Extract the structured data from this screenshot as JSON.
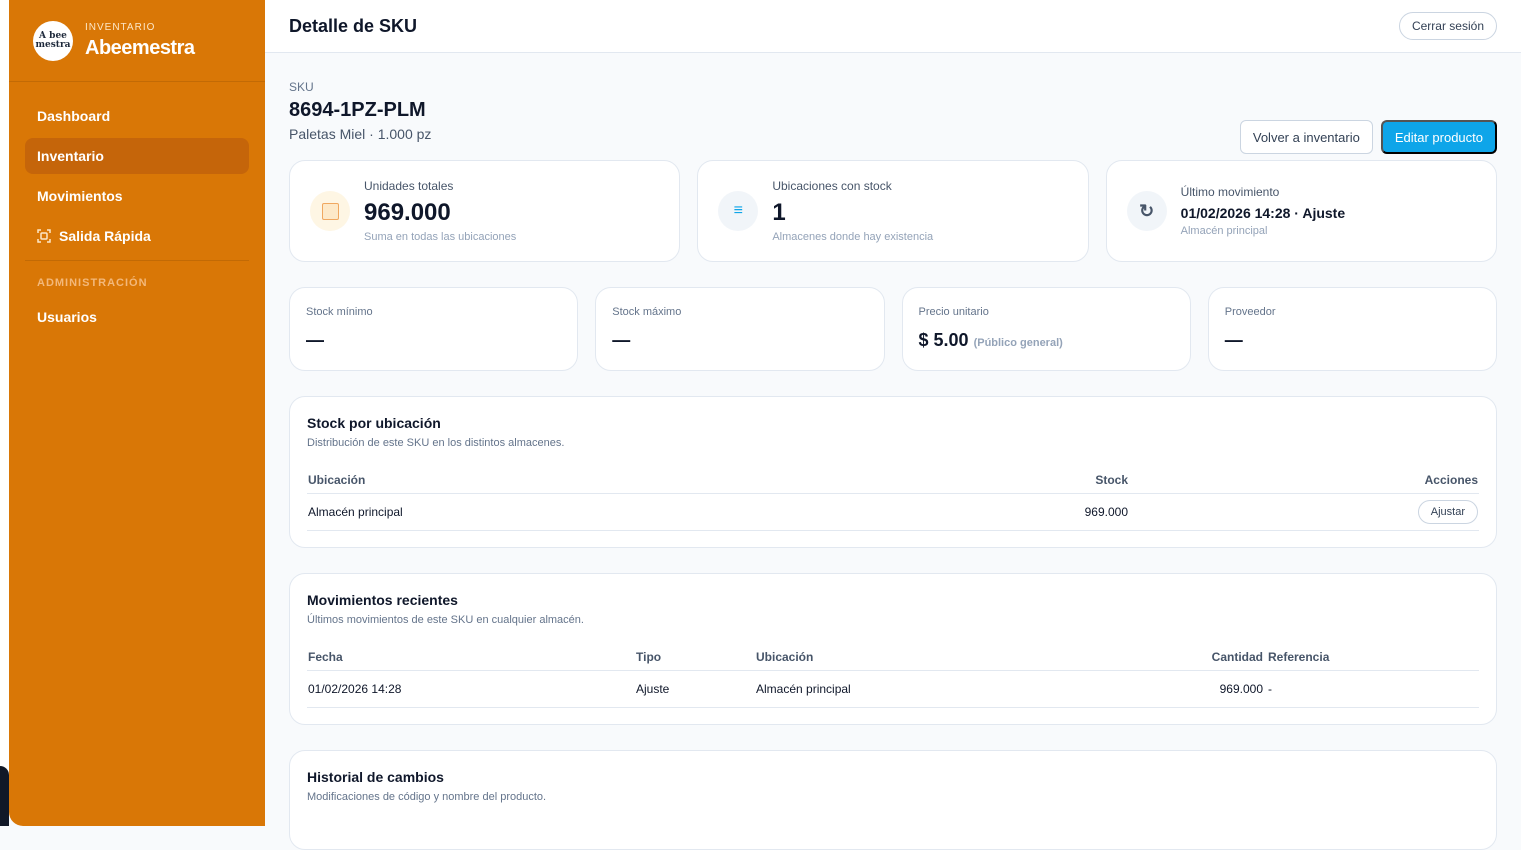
{
  "brand": {
    "subtitle": "INVENTARIO",
    "name": "Abeemestra",
    "logo_text": "A bee mestra"
  },
  "sidebar": {
    "items": [
      {
        "label": "Dashboard"
      },
      {
        "label": "Inventario",
        "active": true
      },
      {
        "label": "Movimientos"
      },
      {
        "label": "Salida Rápida",
        "icon": "scan-icon"
      }
    ],
    "section": "ADMINISTRACIÓN",
    "admin_items": [
      {
        "label": "Usuarios"
      }
    ]
  },
  "header": {
    "title": "Detalle de SKU",
    "logout": "Cerrar sesión"
  },
  "sku": {
    "label": "SKU",
    "code": "8694-1PZ-PLM",
    "subtitle": "Paletas Miel · 1.000 pz",
    "back": "Volver a inventario",
    "edit": "Editar producto"
  },
  "kpis": [
    {
      "label": "Unidades totales",
      "value": "969.000",
      "sub": "Suma en todas las ubicaciones",
      "icon": "box-icon"
    },
    {
      "label": "Ubicaciones con stock",
      "value": "1",
      "sub": "Almacenes donde hay existencia",
      "icon": "list-icon"
    },
    {
      "label": "Último movimiento",
      "value": "01/02/2026 14:28 · Ajuste",
      "sub": "Almacén principal",
      "icon": "refresh-icon"
    }
  ],
  "info": [
    {
      "label": "Stock mínimo",
      "value": "—"
    },
    {
      "label": "Stock máximo",
      "value": "—"
    },
    {
      "label": "Precio unitario",
      "value": "$ 5.00",
      "note": "(Público general)"
    },
    {
      "label": "Proveedor",
      "value": "—"
    }
  ],
  "stock": {
    "title": "Stock por ubicación",
    "subtitle": "Distribución de este SKU en los distintos almacenes.",
    "headers": [
      "Ubicación",
      "Stock",
      "Acciones"
    ],
    "rows": [
      {
        "location": "Almacén principal",
        "stock": "969.000",
        "action": "Ajustar"
      }
    ]
  },
  "movements": {
    "title": "Movimientos recientes",
    "subtitle": "Últimos movimientos de este SKU en cualquier almacén.",
    "headers": [
      "Fecha",
      "Tipo",
      "Ubicación",
      "Cantidad",
      "Referencia"
    ],
    "rows": [
      {
        "date": "01/02/2026 14:28",
        "type": "Ajuste",
        "location": "Almacén principal",
        "qty": "969.000",
        "ref": "-"
      }
    ]
  },
  "history": {
    "title": "Historial de cambios",
    "subtitle": "Modificaciones de código y nombre del producto."
  },
  "colors": {
    "sidebar": "#d97706",
    "primary": "#0ea5e9"
  }
}
